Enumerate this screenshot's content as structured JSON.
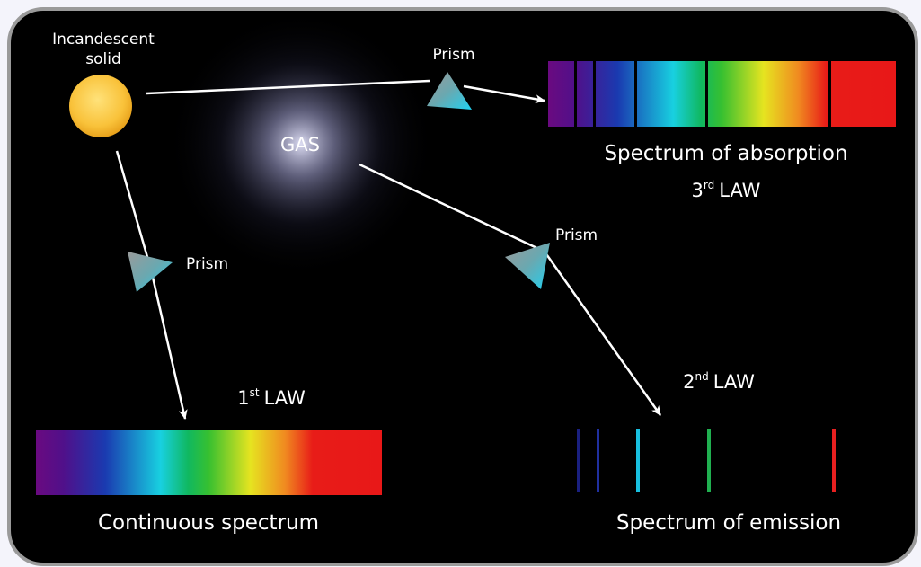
{
  "source": {
    "label_lines": [
      "Incandescent",
      "solid"
    ]
  },
  "gas": {
    "label": "GAS"
  },
  "prisms": [
    {
      "label": "Prism"
    },
    {
      "label": "Prism"
    },
    {
      "label": "Prism"
    }
  ],
  "absorption": {
    "caption": "Spectrum of absorption",
    "law": {
      "number": "3",
      "suffix": "rd",
      "text": "LAW"
    }
  },
  "continuous": {
    "caption": "Continuous spectrum",
    "law": {
      "number": "1",
      "suffix": "st",
      "text": "LAW"
    }
  },
  "emission": {
    "caption": "Spectrum of emission",
    "law": {
      "number": "2",
      "suffix": "nd",
      "text": "LAW"
    }
  }
}
